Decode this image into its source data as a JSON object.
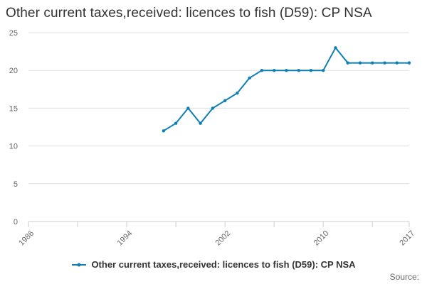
{
  "chart_data": {
    "type": "line",
    "title": "Other current taxes,received: licences to fish (D59): CP NSA",
    "x": [
      1997,
      1998,
      1999,
      2000,
      2001,
      2002,
      2003,
      2004,
      2005,
      2006,
      2007,
      2008,
      2009,
      2010,
      2011,
      2012,
      2013,
      2014,
      2015,
      2016,
      2017
    ],
    "series": [
      {
        "name": "Other current taxes,received: licences to fish (D59): CP NSA",
        "values": [
          12,
          13,
          15,
          13,
          15,
          16,
          17,
          19,
          20,
          20,
          20,
          20,
          20,
          20,
          23,
          21,
          21,
          21,
          21,
          21,
          21
        ]
      }
    ],
    "xlim": [
      1986,
      2017
    ],
    "ylim": [
      0,
      25
    ],
    "x_ticks": [
      "1986",
      "1994",
      "2002",
      "2010",
      "2017"
    ],
    "y_ticks": [
      "0",
      "5",
      "10",
      "15",
      "20",
      "25"
    ],
    "xlabel": "",
    "ylabel": "",
    "grid": "horizontal",
    "legend_position": "bottom",
    "colors": {
      "series": "#0e7eb5",
      "grid": "#e0e0e0",
      "axis": "#cccccc"
    }
  },
  "footer": {
    "source_label": "Source:"
  }
}
